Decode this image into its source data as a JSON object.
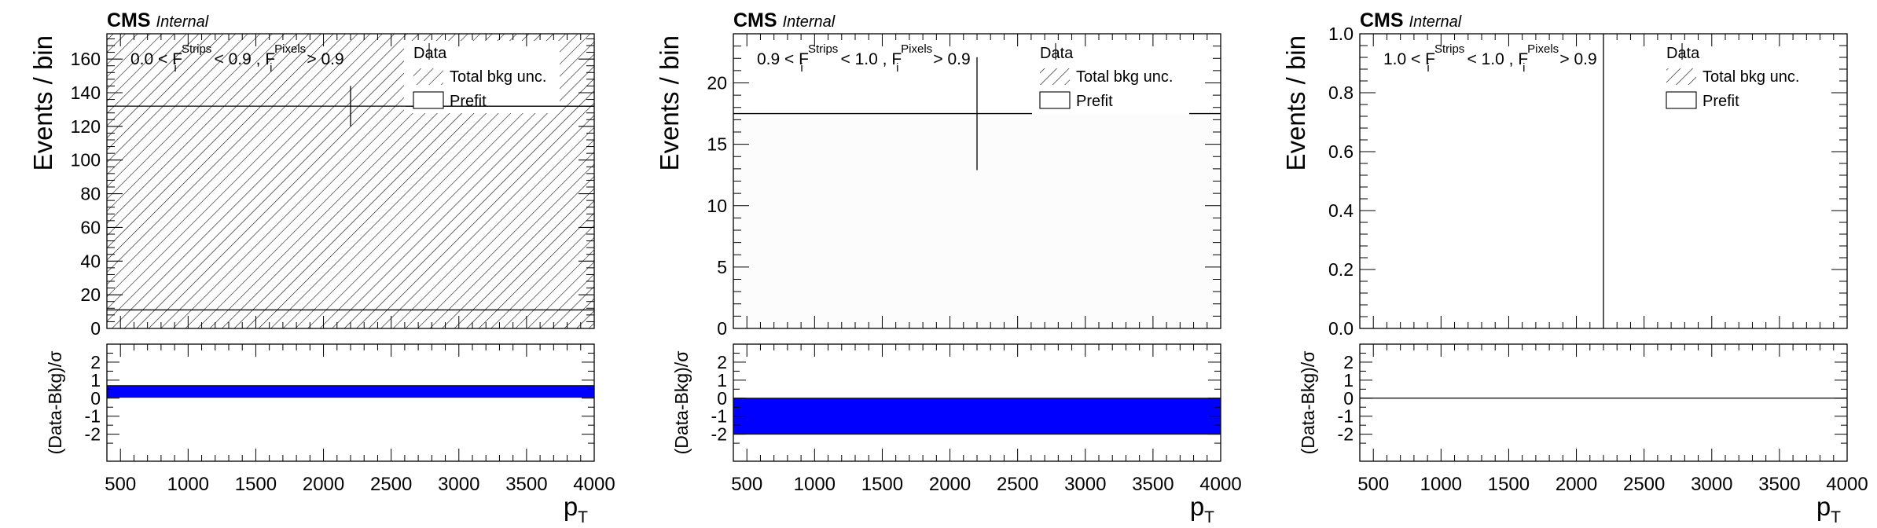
{
  "chart_data": [
    {
      "type": "bar",
      "title": "",
      "experiment_label": "CMS",
      "status_label": "Internal",
      "region": {
        "lo": "0.0",
        "hi": "0.9",
        "strips_var": "F",
        "strips_sub": "i",
        "strips_sup": "Strips",
        "pixels_var": "F",
        "pixels_sub": "i",
        "pixels_sup": "Pixels",
        "pixels_cut": "0.9"
      },
      "legend": [
        "Data",
        "Total bkg unc.",
        "Prefit"
      ],
      "legend_position": "top-right",
      "xlabel": "p",
      "xlabel_sub": "T",
      "ylabel": "Events / bin",
      "ratio_ylabel": "(Data-Bkg)/σ",
      "xlim": [
        400,
        4000
      ],
      "ylim": [
        0,
        175
      ],
      "ratio_ylim": [
        -3.5,
        3
      ],
      "xticks": [
        500,
        1000,
        1500,
        2000,
        2500,
        3000,
        3500,
        4000
      ],
      "yticks": [
        0,
        20,
        40,
        60,
        80,
        100,
        120,
        140,
        160
      ],
      "ratio_yticks": [
        -2,
        -1,
        0,
        1,
        2
      ],
      "yticks_decimals": 0,
      "bins": [
        400,
        4000
      ],
      "data": {
        "x": 2200,
        "y": 132,
        "yerr": 12
      },
      "prefit": [
        11
      ],
      "bkg_unc_band": {
        "lo": 0,
        "hi": 175
      },
      "ratio": {
        "band_lo": 0.05,
        "band_hi": 0.7,
        "line": null
      },
      "bkg_band_fill": "#ffffff",
      "ratio_color": "#0000ff"
    },
    {
      "type": "bar",
      "title": "",
      "experiment_label": "CMS",
      "status_label": "Internal",
      "region": {
        "lo": "0.9",
        "hi": "1.0",
        "strips_var": "F",
        "strips_sub": "i",
        "strips_sup": "Strips",
        "pixels_var": "F",
        "pixels_sub": "i",
        "pixels_sup": "Pixels",
        "pixels_cut": "0.9"
      },
      "legend": [
        "Data",
        "Total bkg unc.",
        "Prefit"
      ],
      "legend_position": "top-right",
      "xlabel": "p",
      "xlabel_sub": "T",
      "ylabel": "Events / bin",
      "ratio_ylabel": "(Data-Bkg)/σ",
      "xlim": [
        400,
        4000
      ],
      "ylim": [
        0,
        24
      ],
      "ratio_ylim": [
        -3.5,
        3
      ],
      "xticks": [
        500,
        1000,
        1500,
        2000,
        2500,
        3000,
        3500,
        4000
      ],
      "yticks": [
        0,
        5,
        10,
        15,
        20
      ],
      "ratio_yticks": [
        -2,
        -1,
        0,
        1,
        2
      ],
      "yticks_decimals": 0,
      "bins": [
        400,
        4000
      ],
      "data": {
        "x": 2200,
        "y": 17.5,
        "yerr": 4.6
      },
      "prefit": [
        null
      ],
      "bkg_unc_band": {
        "lo": 0,
        "hi": 17.5
      },
      "ratio": {
        "band_lo": -2,
        "band_hi": 0,
        "line": null
      },
      "bkg_band_fill": "#fcfcfc",
      "ratio_color": "#0000ff"
    },
    {
      "type": "bar",
      "title": "",
      "experiment_label": "CMS",
      "status_label": "Internal",
      "region": {
        "lo": "1.0",
        "hi": "1.0",
        "strips_var": "F",
        "strips_sub": "i",
        "strips_sup": "Strips",
        "pixels_var": "F",
        "pixels_sub": "i",
        "pixels_sup": "Pixels",
        "pixels_cut": "0.9"
      },
      "legend": [
        "Data",
        "Total bkg unc.",
        "Prefit"
      ],
      "legend_position": "top-right",
      "xlabel": "p",
      "xlabel_sub": "T",
      "ylabel": "Events / bin",
      "ratio_ylabel": "(Data-Bkg)/σ",
      "xlim": [
        400,
        4000
      ],
      "ylim": [
        0,
        1
      ],
      "ratio_ylim": [
        -3.5,
        3
      ],
      "xticks": [
        500,
        1000,
        1500,
        2000,
        2500,
        3000,
        3500,
        4000
      ],
      "yticks": [
        0,
        0.2,
        0.4,
        0.6,
        0.8,
        1
      ],
      "ratio_yticks": [
        -2,
        -1,
        0,
        1,
        2
      ],
      "yticks_decimals": 1,
      "bins": [
        400,
        4000
      ],
      "data": {
        "x": 2200,
        "y": 0,
        "yerr": 1
      },
      "prefit": [
        null
      ],
      "bkg_unc_band": null,
      "ratio": {
        "band_lo": null,
        "band_hi": null,
        "line": 0
      },
      "bkg_band_fill": "#ffffff",
      "ratio_color": "#0000ff"
    }
  ]
}
